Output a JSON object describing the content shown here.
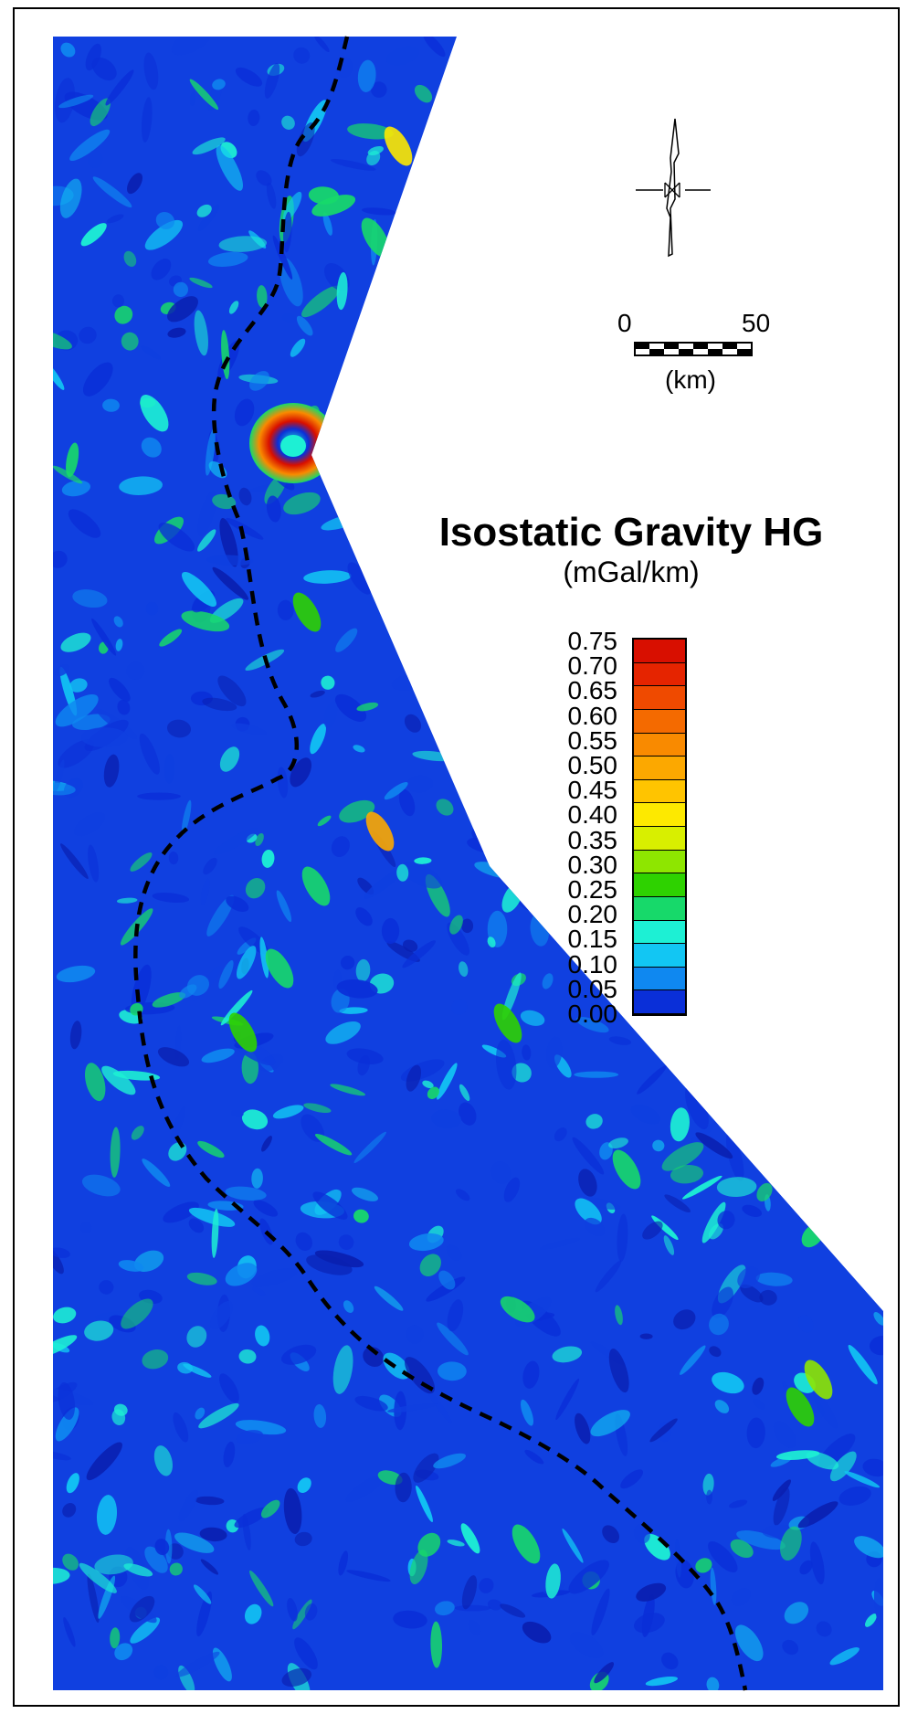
{
  "legend": {
    "title": "Isostatic Gravity HG",
    "units": "(mGal/km)",
    "ticks": [
      "0.75",
      "0.70",
      "0.65",
      "0.60",
      "0.55",
      "0.50",
      "0.45",
      "0.40",
      "0.35",
      "0.30",
      "0.25",
      "0.20",
      "0.15",
      "0.10",
      "0.05",
      "0.00"
    ],
    "colors": [
      "#d80f00",
      "#e52400",
      "#ef4a00",
      "#f46a00",
      "#f98a00",
      "#fca800",
      "#ffc400",
      "#fde900",
      "#d8ef00",
      "#8ee600",
      "#2ed200",
      "#17d96a",
      "#1df0d4",
      "#12c6f3",
      "#0f88f0",
      "#0a2fd8"
    ]
  },
  "scale_bar": {
    "min_label": "0",
    "max_label": "50",
    "unit_label": "(km)"
  },
  "north_arrow": {
    "icon": "north-arrow-icon"
  },
  "map": {
    "feature": "dashed-boundary-line",
    "colors": {
      "low": "#0a2fd8",
      "mid": "#1df0d4",
      "high": "#d80f00",
      "line": "#000000"
    }
  }
}
